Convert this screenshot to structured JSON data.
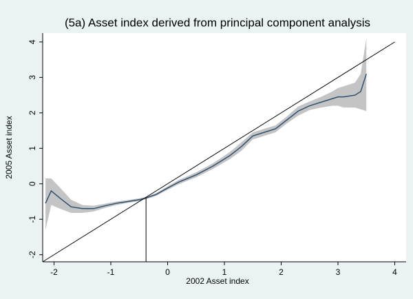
{
  "chart_data": {
    "type": "line",
    "title": "(5a) Asset index derived from principal component analysis",
    "x_label": "2002 Asset index",
    "y_label": "2005 Asset index",
    "x": [
      -2.15,
      -2.05,
      -1.9,
      -1.7,
      -1.5,
      -1.3,
      -1.1,
      -0.9,
      -0.7,
      -0.5,
      -0.38,
      -0.2,
      0,
      0.2,
      0.5,
      0.8,
      1.1,
      1.3,
      1.5,
      1.7,
      1.9,
      2.1,
      2.3,
      2.5,
      2.7,
      2.9,
      3.0,
      3.1,
      3.3,
      3.4,
      3.5
    ],
    "series": [
      {
        "color": "#2b4f72",
        "band_color": "#c4c4c4",
        "values": [
          -0.55,
          -0.2,
          -0.4,
          -0.65,
          -0.7,
          -0.7,
          -0.62,
          -0.55,
          -0.5,
          -0.45,
          -0.4,
          -0.3,
          -0.12,
          0.05,
          0.25,
          0.5,
          0.8,
          1.05,
          1.35,
          1.45,
          1.55,
          1.8,
          2.05,
          2.2,
          2.3,
          2.4,
          2.45,
          2.45,
          2.5,
          2.6,
          3.1
        ],
        "upper": [
          0.15,
          0.15,
          -0.1,
          -0.45,
          -0.6,
          -0.62,
          -0.56,
          -0.5,
          -0.46,
          -0.41,
          -0.37,
          -0.26,
          -0.07,
          0.11,
          0.32,
          0.58,
          0.9,
          1.17,
          1.45,
          1.55,
          1.65,
          1.9,
          2.18,
          2.32,
          2.45,
          2.6,
          2.7,
          2.75,
          2.85,
          3.1,
          4.1
        ],
        "lower": [
          -1.3,
          -0.6,
          -0.7,
          -0.82,
          -0.82,
          -0.78,
          -0.68,
          -0.6,
          -0.54,
          -0.49,
          -0.43,
          -0.34,
          -0.17,
          -0.01,
          0.18,
          0.42,
          0.7,
          0.93,
          1.25,
          1.35,
          1.45,
          1.7,
          1.92,
          2.08,
          2.15,
          2.2,
          2.2,
          2.15,
          2.15,
          2.1,
          2.05
        ]
      }
    ],
    "diagonal_range": [
      -2.2,
      4
    ],
    "vline": {
      "x": -0.38,
      "y": -0.4
    },
    "xlim": [
      -2.2,
      4.2
    ],
    "ylim": [
      -2.2,
      4.25
    ],
    "xticks": [
      -2,
      -1,
      0,
      1,
      2,
      3,
      4
    ],
    "yticks": [
      -2,
      -1,
      0,
      1,
      2,
      3,
      4
    ]
  }
}
